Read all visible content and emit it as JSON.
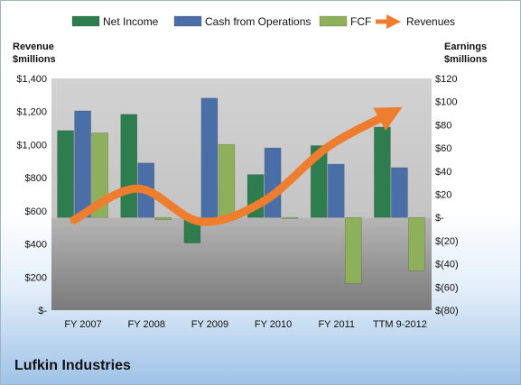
{
  "chart_data": {
    "type": "bar",
    "categories": [
      "FY 2007",
      "FY 2008",
      "FY 2009",
      "FY 2010",
      "FY 2011",
      "TTM 9-2012"
    ],
    "left_axis": {
      "title": [
        "Revenue",
        "$millions"
      ],
      "ticks": [
        "$1,400",
        "$1,200",
        "$1,000",
        "$800",
        "$600",
        "$400",
        "$200",
        "$-"
      ],
      "ylim": [
        0,
        1400
      ]
    },
    "right_axis": {
      "title": [
        "Earnings",
        "$millions"
      ],
      "ticks": [
        "$120",
        "$100",
        "$80",
        "$60",
        "$40",
        "$20",
        "$-",
        "$(20)",
        "$(40)",
        "$(60)",
        "$(80)"
      ],
      "ylim": [
        -80,
        120
      ]
    },
    "series": [
      {
        "name": "Net Income",
        "axis": "right",
        "color": "#2e7d4f",
        "values": [
          75,
          89,
          -22,
          37,
          62,
          78
        ]
      },
      {
        "name": "Cash from Operations",
        "axis": "right",
        "color": "#4a6fa8",
        "values": [
          92,
          47,
          103,
          60,
          46,
          43
        ]
      },
      {
        "name": "FCF",
        "axis": "right",
        "color": "#8fb05a",
        "values": [
          73,
          -2,
          63,
          -1,
          -57,
          -46
        ]
      },
      {
        "name": "Revenues",
        "axis": "left",
        "type": "line",
        "color": "#ee7d2d",
        "values": [
          545,
          735,
          535,
          660,
          985,
          1190
        ]
      }
    ],
    "grid": false,
    "legend": "top"
  },
  "company": "Lufkin Industries"
}
